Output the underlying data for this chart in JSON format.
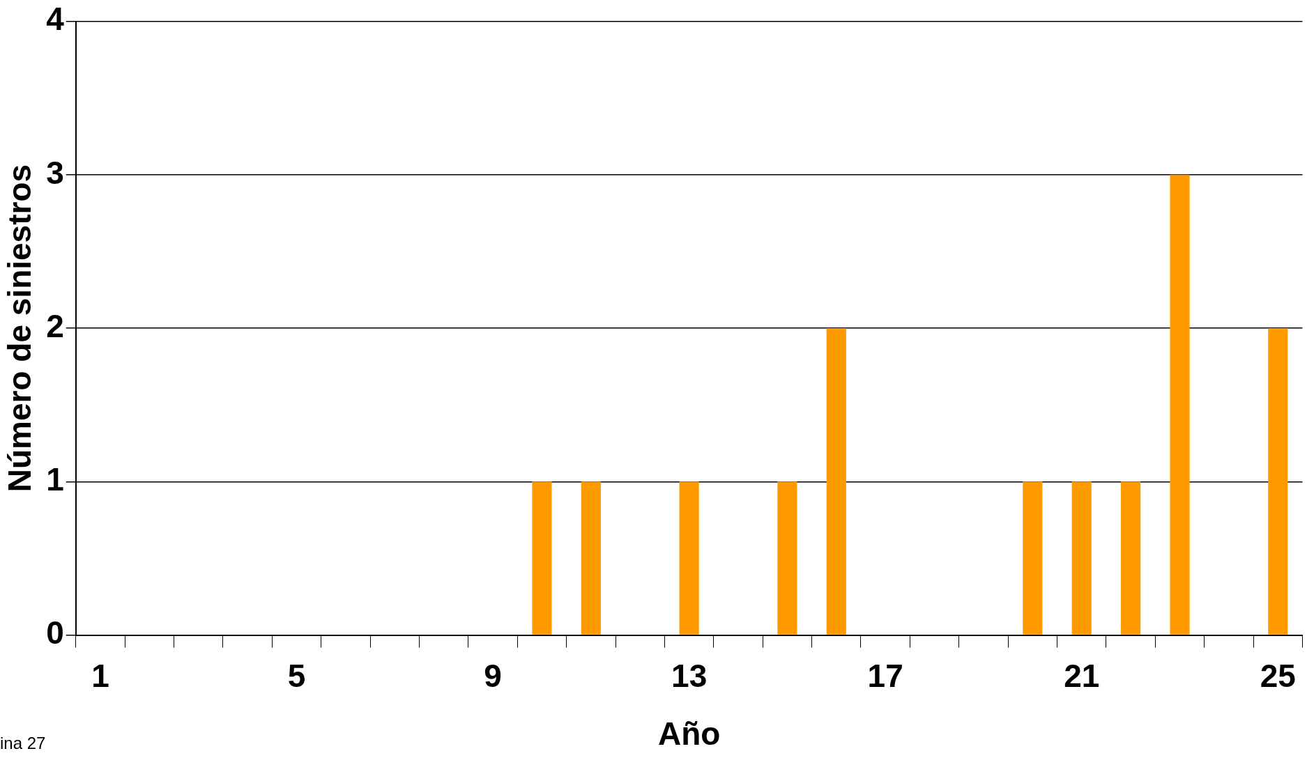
{
  "chart_data": {
    "type": "bar",
    "xlabel": "Año",
    "ylabel": "Número de siniestros",
    "categories": [
      "1",
      null,
      null,
      null,
      "5",
      null,
      null,
      null,
      "9",
      null,
      null,
      null,
      "13",
      null,
      null,
      null,
      "17",
      null,
      null,
      null,
      "21",
      null,
      null,
      null,
      "25"
    ],
    "values": [
      0,
      0,
      0,
      0,
      0,
      0,
      0,
      0,
      0,
      1,
      1,
      0,
      1,
      0,
      1,
      2,
      0,
      0,
      0,
      1,
      1,
      1,
      3,
      0,
      2
    ],
    "color": "#ff9900",
    "ylim": [
      0,
      4
    ],
    "yticks": [
      0,
      1,
      2,
      3,
      4
    ],
    "grid": "y",
    "legend": false,
    "annotations": [
      "ina 27"
    ]
  }
}
